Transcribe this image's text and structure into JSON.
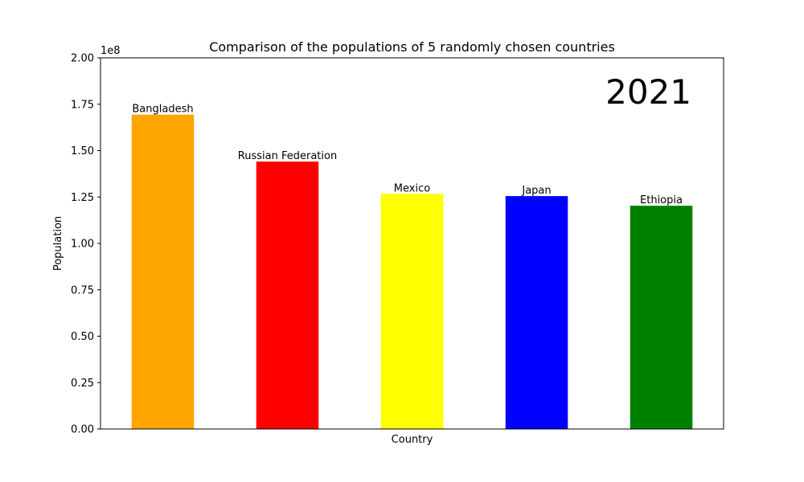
{
  "chart_data": {
    "type": "bar",
    "title": "Comparison of the populations of 5 randomly chosen countries",
    "xlabel": "Country",
    "ylabel": "Population",
    "y_multiplier_label": "1e8",
    "year_label": "2021",
    "categories": [
      "Bangladesh",
      "Russian Federation",
      "Mexico",
      "Japan",
      "Ethiopia"
    ],
    "values": [
      169400000,
      144100000,
      126700000,
      125500000,
      120300000
    ],
    "bar_colors": [
      "#ffa500",
      "#ff0000",
      "#ffff00",
      "#0000ff",
      "#008000"
    ],
    "ylim": [
      0,
      200000000
    ],
    "yticks": [
      0,
      25000000,
      50000000,
      75000000,
      100000000,
      125000000,
      150000000,
      175000000,
      200000000
    ],
    "ytick_labels": [
      "0.00",
      "0.25",
      "0.50",
      "0.75",
      "1.00",
      "1.25",
      "1.50",
      "1.75",
      "2.00"
    ],
    "grid": false,
    "legend": false,
    "xticks_visible": false
  }
}
